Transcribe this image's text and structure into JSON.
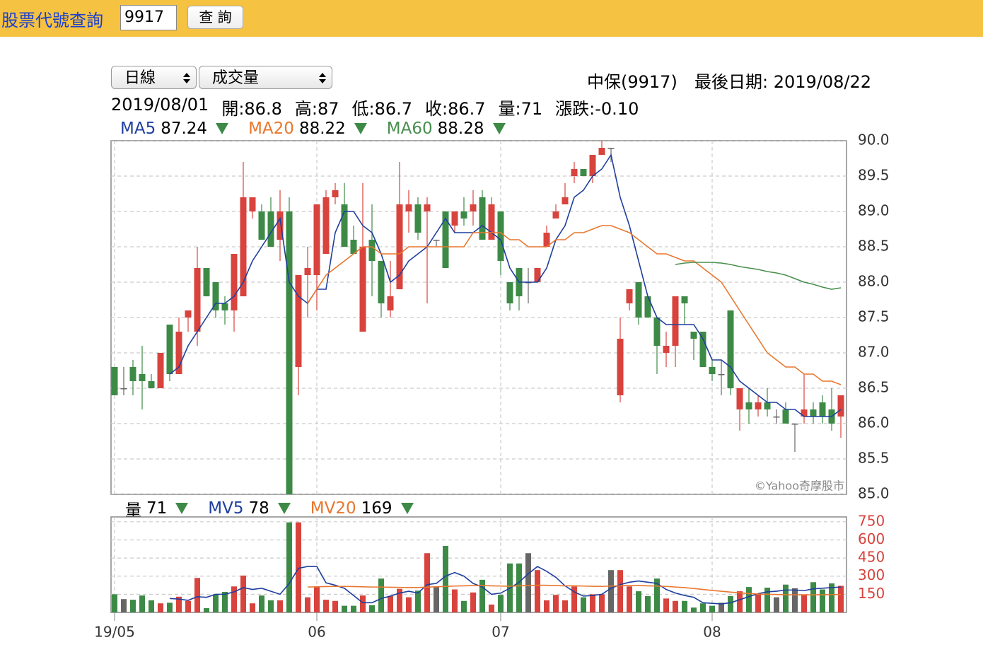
{
  "toolbar": {
    "label": "股票代號查詢",
    "code": "9917",
    "button": "查 詢",
    "period": "日線",
    "indicator": "成交量"
  },
  "header": {
    "stock": "中保(9917)",
    "last_date": "最後日期: 2019/08/22",
    "info": [
      "2019/08/01",
      "開:86.8",
      "高:87",
      "低:86.7",
      "收:86.7",
      "量:71",
      "漲跌:-0.10"
    ]
  },
  "watermark": "©Yahoo奇摩股市",
  "chart_data": [
    {
      "type": "candlestick",
      "up_color": "#d8433d",
      "down_color": "#3d8a47",
      "flat_color": "#666666",
      "ylim": [
        85,
        90
      ],
      "yticks": [
        {
          "value": 85,
          "label": "85.0"
        },
        85.5,
        {
          "value": 86,
          "label": "86.0"
        },
        86.5,
        {
          "value": 87,
          "label": "87.0"
        },
        87.5,
        {
          "value": 88,
          "label": "88.0"
        },
        88.5,
        {
          "value": 89,
          "label": "89.0"
        },
        89.5,
        {
          "value": 90,
          "label": "90.0"
        }
      ],
      "grid": true,
      "open": [
        86.8,
        86.5,
        86.8,
        86.7,
        86.6,
        86.5,
        87.4,
        86.7,
        87.5,
        87.3,
        88.2,
        88.0,
        87.7,
        87.6,
        87.8,
        89.0,
        89.0,
        89.0,
        88.6,
        89.0,
        86.8,
        88.1,
        88.1,
        88.4,
        89.2,
        89.1,
        88.6,
        87.3,
        88.6,
        88.3,
        87.6,
        87.9,
        89.0,
        89.1,
        89.0,
        88.6,
        89.0,
        88.8,
        89.0,
        89.0,
        89.2,
        88.6,
        89.0,
        88.0,
        88.2,
        88.0,
        88.0,
        88.5,
        88.9,
        89.1,
        89.5,
        89.6,
        89.5,
        89.8,
        89.9,
        86.4,
        87.7,
        88.0,
        87.8,
        87.5,
        87.0,
        87.1,
        87.8,
        87.3,
        87.3,
        86.8,
        86.7,
        87.6,
        86.2,
        86.3,
        86.2,
        86.3,
        86.1,
        86.2,
        86.0,
        86.1,
        86.2,
        86.3,
        86.2,
        86.1
      ],
      "high": [
        86.8,
        86.8,
        86.9,
        87.1,
        86.7,
        87.0,
        87.4,
        87.5,
        87.6,
        88.5,
        88.2,
        88.0,
        87.8,
        88.4,
        89.7,
        89.2,
        89.1,
        89.2,
        89.3,
        89.2,
        88.1,
        88.5,
        89.1,
        89.3,
        89.4,
        89.4,
        88.8,
        89.4,
        89.1,
        88.3,
        88.3,
        89.7,
        89.3,
        89.2,
        89.2,
        88.6,
        89.0,
        89.0,
        89.2,
        89.3,
        89.3,
        89.2,
        89.0,
        88.0,
        88.2,
        88.2,
        88.2,
        88.8,
        89.1,
        89.4,
        89.7,
        89.6,
        89.8,
        90.0,
        89.9,
        87.5,
        87.9,
        88.0,
        87.8,
        87.5,
        87.3,
        87.8,
        87.8,
        87.3,
        87.3,
        86.9,
        86.9,
        87.6,
        86.5,
        86.5,
        86.4,
        86.5,
        86.2,
        86.3,
        86.0,
        86.7,
        86.3,
        86.4,
        86.5,
        86.4
      ],
      "low": [
        86.4,
        86.4,
        86.4,
        86.2,
        86.5,
        86.5,
        86.6,
        86.7,
        87.3,
        87.1,
        87.8,
        87.5,
        87.4,
        87.3,
        87.8,
        88.9,
        88.6,
        88.5,
        88.3,
        85.0,
        86.4,
        87.5,
        87.6,
        88.4,
        89.1,
        88.5,
        88.4,
        87.3,
        87.8,
        87.5,
        87.5,
        87.9,
        88.7,
        88.6,
        87.7,
        88.5,
        88.2,
        88.7,
        88.8,
        88.8,
        88.6,
        88.6,
        88.1,
        87.6,
        87.6,
        87.7,
        88.0,
        88.5,
        88.9,
        89.1,
        89.4,
        89.5,
        89.4,
        89.8,
        89.7,
        86.3,
        87.6,
        87.4,
        87.5,
        86.7,
        86.8,
        86.8,
        87.4,
        86.9,
        86.8,
        86.6,
        86.4,
        86.4,
        85.9,
        86.0,
        86.1,
        86.1,
        86.0,
        86.0,
        85.6,
        86.0,
        86.0,
        86.0,
        85.9,
        85.8
      ],
      "close": [
        86.4,
        86.5,
        86.6,
        86.6,
        86.5,
        87.0,
        86.7,
        87.3,
        87.6,
        88.2,
        87.8,
        87.6,
        87.6,
        88.4,
        89.2,
        89.2,
        88.6,
        88.5,
        89.0,
        85.0,
        88.1,
        88.2,
        89.1,
        89.2,
        89.3,
        88.5,
        88.4,
        88.5,
        88.3,
        87.7,
        87.8,
        89.1,
        89.1,
        88.7,
        89.1,
        88.6,
        88.2,
        89.0,
        88.9,
        89.1,
        88.6,
        89.1,
        88.3,
        87.7,
        87.8,
        88.0,
        88.2,
        88.7,
        89.0,
        89.2,
        89.6,
        89.5,
        89.8,
        89.9,
        89.9,
        87.2,
        87.9,
        87.5,
        87.5,
        87.1,
        87.1,
        87.8,
        87.7,
        87.2,
        86.8,
        86.7,
        86.7,
        86.5,
        86.5,
        86.2,
        86.3,
        86.2,
        86.1,
        86.0,
        86.0,
        86.2,
        86.1,
        86.1,
        86.0,
        86.4
      ],
      "series": [
        {
          "name": "MA5",
          "color": "#1f3f9e",
          "legend_value": 87.24,
          "values": [
            null,
            null,
            null,
            null,
            null,
            null,
            86.7,
            86.8,
            87.1,
            87.3,
            87.5,
            87.7,
            87.7,
            87.8,
            88.0,
            88.3,
            88.5,
            88.7,
            88.9,
            88.0,
            87.8,
            87.7,
            87.9,
            87.9,
            88.7,
            89.0,
            89.0,
            88.8,
            88.7,
            88.4,
            88.0,
            88.1,
            88.3,
            88.4,
            88.5,
            88.7,
            88.9,
            88.7,
            88.7,
            88.7,
            88.8,
            88.7,
            88.6,
            88.2,
            88.0,
            88.0,
            88.0,
            88.2,
            88.6,
            88.8,
            89.2,
            89.3,
            89.5,
            89.6,
            89.8,
            89.2,
            88.8,
            88.3,
            87.8,
            87.5,
            87.4,
            87.4,
            87.4,
            87.4,
            87.2,
            86.9,
            86.9,
            86.8,
            86.6,
            86.5,
            86.4,
            86.3,
            86.3,
            86.2,
            86.2,
            86.1,
            86.1,
            86.1,
            86.1,
            86.2
          ]
        },
        {
          "name": "MA20",
          "color": "#e8772e",
          "legend_value": 88.22,
          "values": [
            null,
            null,
            null,
            null,
            null,
            null,
            null,
            null,
            null,
            null,
            null,
            null,
            null,
            null,
            null,
            null,
            null,
            null,
            null,
            null,
            null,
            87.7,
            87.9,
            88.1,
            88.2,
            88.3,
            88.4,
            88.5,
            88.5,
            88.4,
            88.4,
            88.4,
            88.5,
            88.5,
            88.5,
            88.5,
            88.5,
            88.5,
            88.5,
            88.7,
            88.7,
            88.7,
            88.7,
            88.6,
            88.6,
            88.5,
            88.5,
            88.5,
            88.6,
            88.6,
            88.7,
            88.7,
            88.75,
            88.8,
            88.8,
            88.75,
            88.7,
            88.6,
            88.5,
            88.4,
            88.4,
            88.35,
            88.3,
            88.3,
            88.2,
            88.1,
            88.0,
            87.8,
            87.6,
            87.4,
            87.2,
            87.0,
            86.9,
            86.8,
            86.8,
            86.7,
            86.7,
            86.6,
            86.6,
            86.55
          ]
        },
        {
          "name": "MA60",
          "color": "#4a8f4f",
          "legend_value": 88.28,
          "values": [
            null,
            null,
            null,
            null,
            null,
            null,
            null,
            null,
            null,
            null,
            null,
            null,
            null,
            null,
            null,
            null,
            null,
            null,
            null,
            null,
            null,
            null,
            null,
            null,
            null,
            null,
            null,
            null,
            null,
            null,
            null,
            null,
            null,
            null,
            null,
            null,
            null,
            null,
            null,
            null,
            null,
            null,
            null,
            null,
            null,
            null,
            null,
            null,
            null,
            null,
            null,
            null,
            null,
            null,
            null,
            null,
            null,
            null,
            null,
            null,
            null,
            88.25,
            88.27,
            88.28,
            88.28,
            88.28,
            88.27,
            88.25,
            88.22,
            88.2,
            88.18,
            88.15,
            88.13,
            88.1,
            88.05,
            88.0,
            87.97,
            87.93,
            87.9,
            87.92
          ]
        }
      ]
    },
    {
      "type": "bar",
      "volume_name": "量",
      "volume_legend_value": 71,
      "tick_color": "#d8433d",
      "ylim": [
        0,
        790
      ],
      "yticks": [
        150,
        300,
        450,
        600,
        750
      ],
      "grid": true,
      "categories": [
        "19/05",
        null,
        null,
        null,
        null,
        null,
        null,
        null,
        null,
        null,
        null,
        null,
        null,
        null,
        null,
        null,
        null,
        null,
        null,
        null,
        null,
        null,
        "06",
        null,
        null,
        null,
        null,
        null,
        null,
        null,
        null,
        null,
        null,
        null,
        null,
        null,
        null,
        null,
        null,
        null,
        null,
        null,
        "07",
        null,
        null,
        null,
        null,
        null,
        null,
        null,
        null,
        null,
        null,
        null,
        null,
        null,
        null,
        null,
        null,
        null,
        null,
        null,
        null,
        null,
        null,
        "08",
        null,
        null,
        null,
        null,
        null,
        null,
        null,
        null,
        null,
        null,
        null,
        null,
        null,
        null
      ],
      "values": [
        150,
        110,
        105,
        140,
        100,
        75,
        80,
        130,
        95,
        285,
        35,
        150,
        170,
        215,
        305,
        75,
        140,
        100,
        100,
        745,
        745,
        125,
        210,
        105,
        95,
        55,
        55,
        140,
        60,
        280,
        135,
        195,
        125,
        180,
        490,
        215,
        550,
        190,
        95,
        165,
        270,
        65,
        145,
        405,
        405,
        490,
        350,
        100,
        145,
        100,
        215,
        125,
        150,
        150,
        350,
        350,
        215,
        175,
        135,
        280,
        115,
        95,
        95,
        40,
        75,
        55,
        80,
        135,
        175,
        210,
        150,
        205,
        125,
        230,
        200,
        150,
        250,
        190,
        240,
        220
      ],
      "series": [
        {
          "name": "MV5",
          "color": "#1f3f9e",
          "legend_value": 78,
          "values": [
            null,
            null,
            null,
            null,
            null,
            null,
            115,
            110,
            100,
            130,
            125,
            150,
            150,
            170,
            205,
            190,
            200,
            175,
            150,
            240,
            365,
            380,
            380,
            245,
            225,
            200,
            140,
            80,
            80,
            115,
            135,
            160,
            175,
            160,
            230,
            240,
            300,
            330,
            300,
            240,
            210,
            150,
            160,
            200,
            250,
            320,
            380,
            340,
            290,
            220,
            170,
            135,
            140,
            150,
            200,
            230,
            250,
            260,
            250,
            240,
            190,
            160,
            140,
            125,
            80,
            75,
            70,
            80,
            105,
            130,
            155,
            170,
            175,
            185,
            185,
            180,
            195,
            200,
            205,
            210
          ]
        },
        {
          "name": "MV20",
          "color": "#e8772e",
          "legend_value": 169,
          "values": [
            null,
            null,
            null,
            null,
            null,
            null,
            null,
            null,
            null,
            null,
            null,
            null,
            null,
            null,
            null,
            null,
            null,
            null,
            null,
            null,
            null,
            210,
            212,
            214,
            215,
            215,
            214,
            212,
            210,
            210,
            208,
            207,
            206,
            206,
            210,
            212,
            215,
            218,
            220,
            222,
            222,
            220,
            218,
            217,
            220,
            222,
            225,
            224,
            222,
            220,
            220,
            218,
            216,
            215,
            218,
            220,
            222,
            222,
            220,
            218,
            215,
            210,
            205,
            198,
            190,
            182,
            175,
            168,
            162,
            156,
            152,
            150,
            148,
            146,
            145,
            145,
            145,
            146,
            147,
            148
          ]
        }
      ]
    }
  ]
}
